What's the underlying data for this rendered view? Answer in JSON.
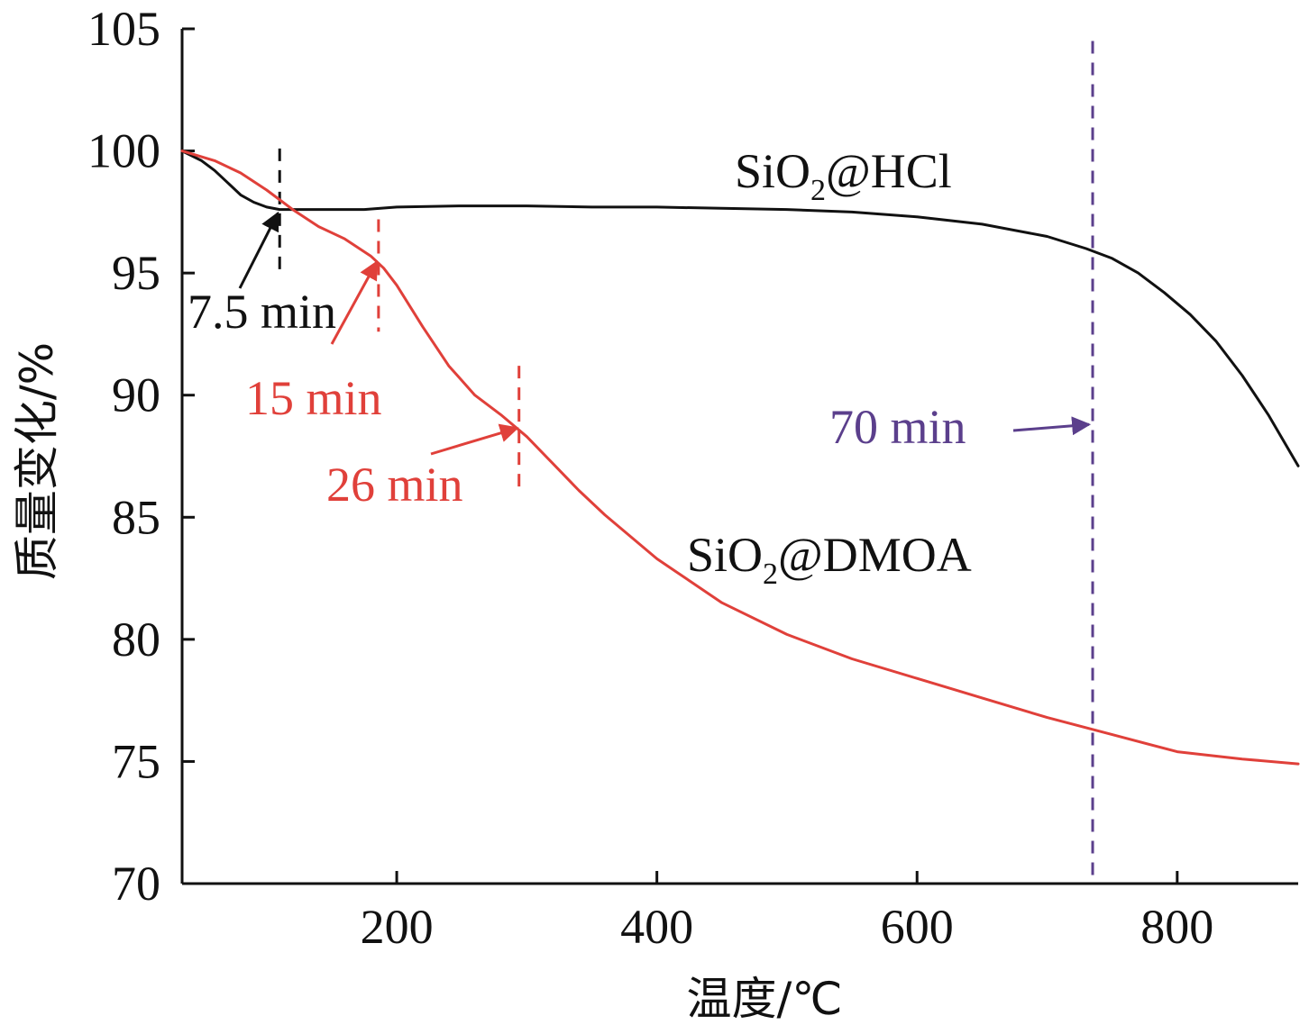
{
  "chart_data": {
    "type": "line",
    "xlabel": "温度/℃",
    "ylabel": "质量变化/%",
    "xlim": [
      35,
      893
    ],
    "ylim": [
      70,
      105
    ],
    "xticks": [
      200,
      400,
      600,
      800
    ],
    "yticks": [
      70,
      75,
      80,
      85,
      90,
      95,
      100,
      105
    ],
    "grid": false,
    "series": [
      {
        "name": "SiO2@HCl",
        "label_main": "SiO",
        "label_sub": "2",
        "label_tail": "@HCl",
        "color": "#111111",
        "x": [
          35,
          50,
          60,
          70,
          80,
          90,
          100,
          110,
          125,
          150,
          175,
          200,
          250,
          300,
          350,
          400,
          450,
          500,
          550,
          600,
          650,
          700,
          730,
          750,
          770,
          790,
          810,
          830,
          850,
          870,
          893
        ],
        "y": [
          100,
          99.6,
          99.2,
          98.7,
          98.2,
          97.9,
          97.7,
          97.6,
          97.6,
          97.6,
          97.6,
          97.7,
          97.75,
          97.75,
          97.7,
          97.7,
          97.65,
          97.6,
          97.5,
          97.3,
          97.0,
          96.5,
          96.0,
          95.6,
          95.0,
          94.2,
          93.3,
          92.2,
          90.8,
          89.2,
          87.1
        ]
      },
      {
        "name": "SiO2@DMOA",
        "label_main": "SiO",
        "label_sub": "2",
        "label_tail": "@DMOA",
        "color": "#e0403a",
        "x": [
          35,
          60,
          80,
          100,
          120,
          140,
          160,
          180,
          190,
          200,
          220,
          240,
          260,
          280,
          300,
          320,
          340,
          360,
          380,
          400,
          450,
          500,
          550,
          600,
          650,
          700,
          750,
          800,
          850,
          893
        ],
        "y": [
          100,
          99.6,
          99.1,
          98.4,
          97.6,
          96.9,
          96.4,
          95.7,
          95.2,
          94.5,
          92.8,
          91.2,
          90.0,
          89.2,
          88.3,
          87.2,
          86.1,
          85.1,
          84.2,
          83.3,
          81.5,
          80.2,
          79.2,
          78.4,
          77.6,
          76.8,
          76.1,
          75.4,
          75.1,
          74.9
        ]
      }
    ],
    "markers": [
      {
        "label": "7.5 min",
        "x": 110,
        "y_top": 100.1,
        "y_bottom": 94.8,
        "color": "#111111",
        "arrow_to": [
          110,
          97.6
        ]
      },
      {
        "label": "15 min",
        "x": 186,
        "y_top": 97.2,
        "y_bottom": 92.6,
        "color": "#e0403a",
        "arrow_to": [
          186,
          95.6
        ]
      },
      {
        "label": "26 min",
        "x": 294,
        "y_top": 91.2,
        "y_bottom": 86.2,
        "color": "#e0403a",
        "arrow_to": [
          294,
          88.8
        ]
      },
      {
        "label": "70 min",
        "x": 735,
        "y_top": 104.5,
        "y_bottom": 70,
        "color": "#5b3f8c",
        "arrow_to": [
          735,
          88.8
        ]
      }
    ]
  }
}
